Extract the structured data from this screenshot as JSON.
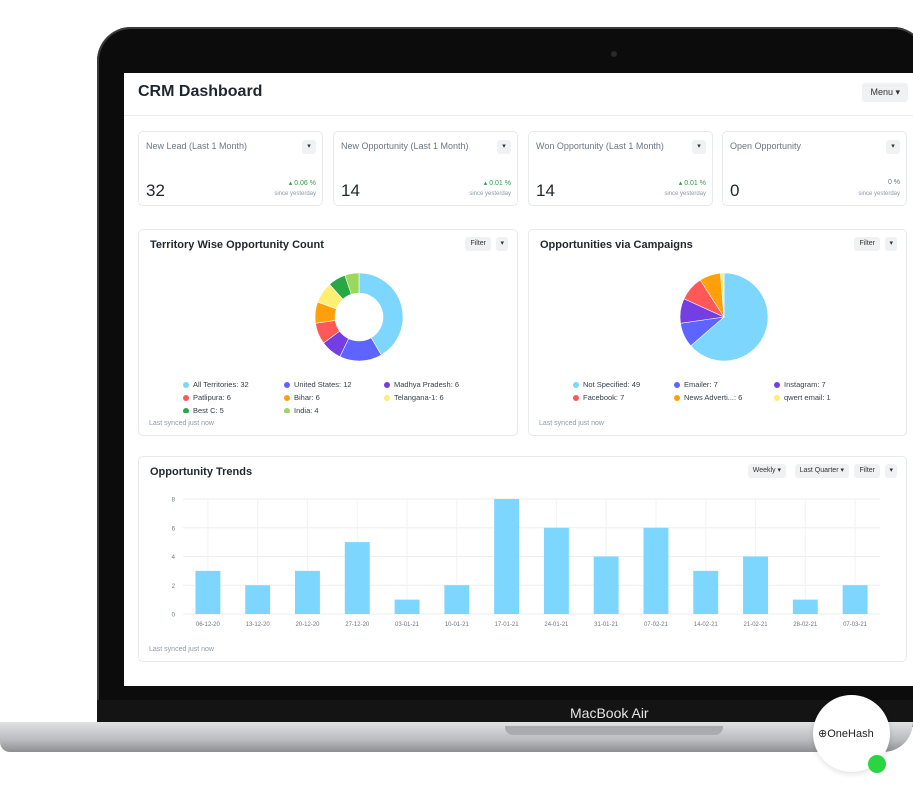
{
  "header": {
    "title": "CRM Dashboard",
    "menu_label": "Menu ▾"
  },
  "number_cards": [
    {
      "title": "New Lead (Last 1 Month)",
      "value": "32",
      "change": "▴ 0.06 %",
      "since": "since yesterday",
      "trend": "up"
    },
    {
      "title": "New Opportunity (Last 1 Month)",
      "value": "14",
      "change": "▴ 0.01 %",
      "since": "since yesterday",
      "trend": "up"
    },
    {
      "title": "Won Opportunity (Last 1 Month)",
      "value": "14",
      "change": "▴ 0.01 %",
      "since": "since yesterday",
      "trend": "up"
    },
    {
      "title": "Open Opportunity",
      "value": "0",
      "change": "0 %",
      "since": "since yesterday",
      "trend": "flat"
    }
  ],
  "territory_chart": {
    "title": "Territory Wise Opportunity Count",
    "filter_label": "Filter",
    "synced": "Last synced just now",
    "legend": [
      {
        "label": "All Territories: 32",
        "color": "#7cd6fd"
      },
      {
        "label": "United States: 12",
        "color": "#5e64ff"
      },
      {
        "label": "Madhya Pradesh: 6",
        "color": "#743ee2"
      },
      {
        "label": "Patlipura: 6",
        "color": "#ff5858"
      },
      {
        "label": "Bihar: 6",
        "color": "#ffa00a"
      },
      {
        "label": "Telangana-1: 6",
        "color": "#feef72"
      },
      {
        "label": "Best C: 5",
        "color": "#28a745"
      },
      {
        "label": "India: 4",
        "color": "#98d85b"
      }
    ]
  },
  "campaign_chart": {
    "title": "Opportunities via Campaigns",
    "filter_label": "Filter",
    "synced": "Last synced just now",
    "legend": [
      {
        "label": "Not Specified: 49",
        "color": "#7cd6fd"
      },
      {
        "label": "Emailer: 7",
        "color": "#5e64ff"
      },
      {
        "label": "Instagram: 7",
        "color": "#743ee2"
      },
      {
        "label": "Facebook: 7",
        "color": "#ff5858"
      },
      {
        "label": "News Adverti...: 6",
        "color": "#ffa00a"
      },
      {
        "label": "qwert email: 1",
        "color": "#feef72"
      }
    ]
  },
  "trends": {
    "title": "Opportunity Trends",
    "weekly_label": "Weekly ▾",
    "range_label": "Last Quarter ▾",
    "filter_label": "Filter",
    "synced": "Last synced just now"
  },
  "chart_data": [
    {
      "type": "pie",
      "title": "Territory Wise Opportunity Count",
      "donut": true,
      "categories": [
        "All Territories",
        "United States",
        "Madhya Pradesh",
        "Patlipura",
        "Bihar",
        "Telangana-1",
        "Best C",
        "India"
      ],
      "values": [
        32,
        12,
        6,
        6,
        6,
        6,
        5,
        4
      ],
      "colors": [
        "#7cd6fd",
        "#5e64ff",
        "#743ee2",
        "#ff5858",
        "#ffa00a",
        "#feef72",
        "#28a745",
        "#98d85b"
      ]
    },
    {
      "type": "pie",
      "title": "Opportunities via Campaigns",
      "donut": false,
      "categories": [
        "Not Specified",
        "Emailer",
        "Instagram",
        "Facebook",
        "News Adverti...",
        "qwert email"
      ],
      "values": [
        49,
        7,
        7,
        7,
        6,
        1
      ],
      "colors": [
        "#7cd6fd",
        "#5e64ff",
        "#743ee2",
        "#ff5858",
        "#ffa00a",
        "#feef72"
      ]
    },
    {
      "type": "bar",
      "title": "Opportunity Trends",
      "categories": [
        "06-12-20",
        "13-12-20",
        "20-12-20",
        "27-12-20",
        "03-01-21",
        "10-01-21",
        "17-01-21",
        "24-01-21",
        "31-01-21",
        "07-02-21",
        "14-02-21",
        "21-02-21",
        "28-02-21",
        "07-03-21"
      ],
      "values": [
        3,
        2,
        3,
        5,
        1,
        2,
        8,
        6,
        4,
        6,
        3,
        4,
        1,
        2
      ],
      "ylim": [
        0,
        8
      ],
      "yticks": [
        0,
        2,
        4,
        6,
        8
      ],
      "color": "#7cd6fd",
      "grid": true
    }
  ],
  "device": {
    "label": "MacBook Air"
  },
  "badge": {
    "label": "OneHash"
  }
}
